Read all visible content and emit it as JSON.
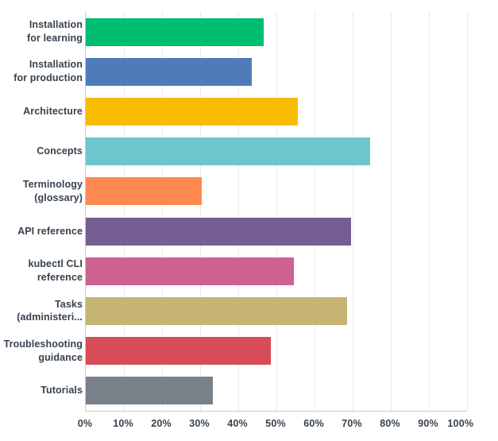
{
  "chart_data": {
    "type": "bar",
    "orientation": "horizontal",
    "xlabel": "",
    "ylabel": "",
    "xlim": [
      0,
      100
    ],
    "xticks": [
      "0%",
      "10%",
      "20%",
      "30%",
      "40%",
      "50%",
      "60%",
      "70%",
      "80%",
      "90%",
      "100%"
    ],
    "grid": "vertical",
    "legend": "none",
    "categories": [
      {
        "label": "Installation for learning",
        "lines": [
          "Installation",
          "for learning"
        ],
        "value": 46.6,
        "color": "#00BE6F"
      },
      {
        "label": "Installation for production",
        "lines": [
          "Installation",
          "for production"
        ],
        "value": 43.5,
        "color": "#4D7CB8"
      },
      {
        "label": "Architecture",
        "lines": [
          "Architecture"
        ],
        "value": 55.7,
        "color": "#F8BC01"
      },
      {
        "label": "Concepts",
        "lines": [
          "Concepts"
        ],
        "value": 74.6,
        "color": "#6DC6CB"
      },
      {
        "label": "Terminology (glossary)",
        "lines": [
          "Terminology",
          "(glossary)"
        ],
        "value": 30.4,
        "color": "#FC8A50"
      },
      {
        "label": "API reference",
        "lines": [
          "API reference"
        ],
        "value": 69.6,
        "color": "#745E92"
      },
      {
        "label": "kubectl CLI reference",
        "lines": [
          "kubectl CLI",
          "reference"
        ],
        "value": 54.6,
        "color": "#CE6191"
      },
      {
        "label": "Tasks (administeri...",
        "lines": [
          "Tasks",
          "(administeri..."
        ],
        "value": 68.5,
        "color": "#C5B472"
      },
      {
        "label": "Troubleshooting guidance",
        "lines": [
          "Troubleshooting",
          "guidance"
        ],
        "value": 48.5,
        "color": "#D84B58"
      },
      {
        "label": "Tutorials",
        "lines": [
          "Tutorials"
        ],
        "value": 33.3,
        "color": "#798089"
      }
    ]
  },
  "style": {
    "background": "#FFFFFF",
    "text_color": "#37424D",
    "axis_color": "#CCCCCC",
    "gridline_color": "#E9E9E9"
  }
}
